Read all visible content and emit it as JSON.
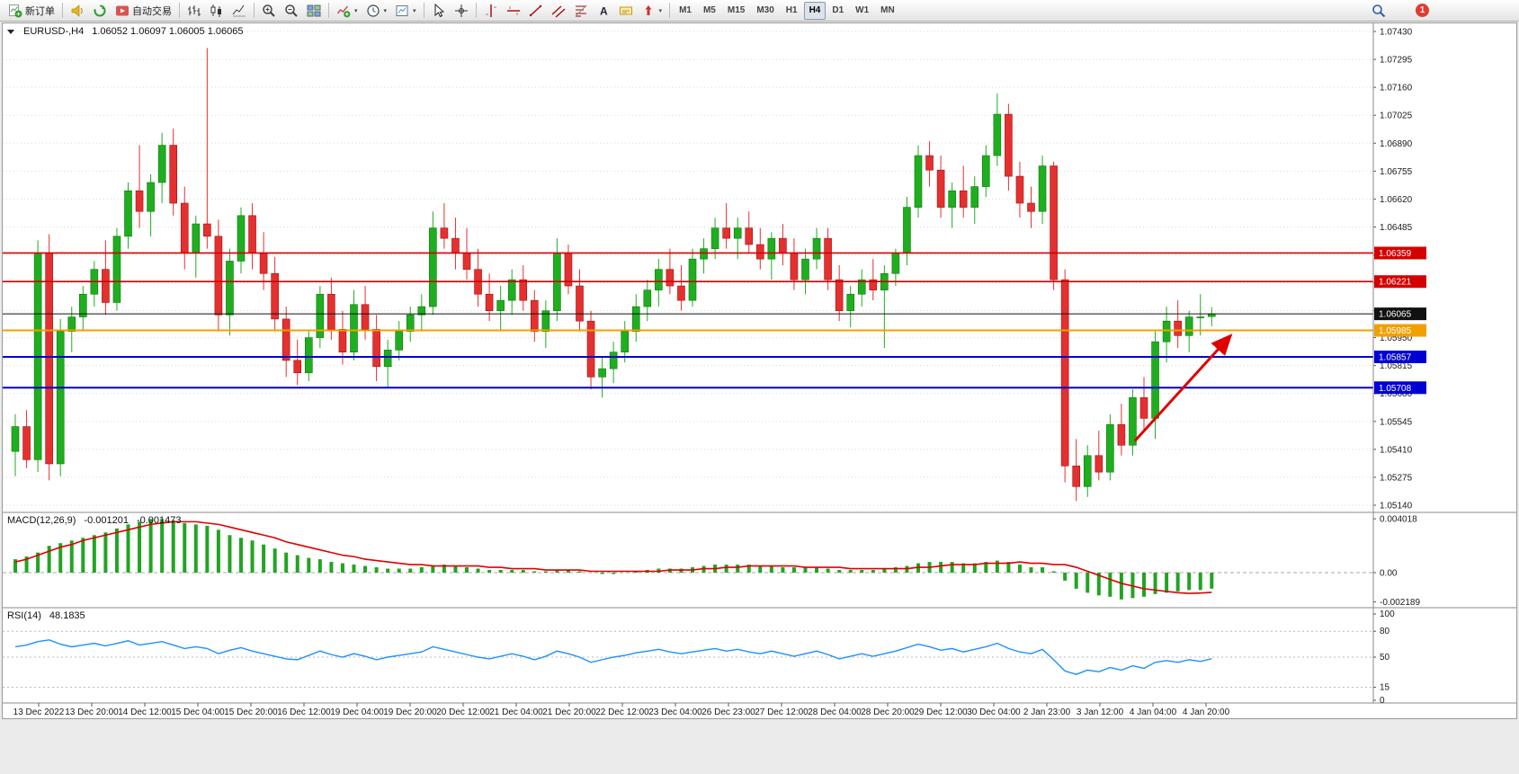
{
  "toolbar": {
    "items": [
      {
        "icon": "new-order",
        "label": "新订单",
        "name": "new-order-button"
      },
      {
        "sep": true
      },
      {
        "icon": "horn",
        "name": "alerts-button"
      },
      {
        "icon": "refresh-circle",
        "name": "quotes-button"
      },
      {
        "icon": "auto-trading",
        "label": "自动交易",
        "name": "auto-trading-button"
      },
      {
        "sep": true
      },
      {
        "icon": "bar-chart",
        "name": "bar-chart-button"
      },
      {
        "icon": "candles",
        "name": "candle-chart-button"
      },
      {
        "icon": "line-chart",
        "name": "line-chart-button"
      },
      {
        "sep": true
      },
      {
        "icon": "zoom-in",
        "name": "zoom-in-button"
      },
      {
        "icon": "zoom-out",
        "name": "zoom-out-button"
      },
      {
        "icon": "tile-windows",
        "name": "tile-windows-button"
      },
      {
        "sep": true
      },
      {
        "icon": "indicators",
        "caret": true,
        "name": "indicators-button"
      },
      {
        "icon": "periods",
        "caret": true,
        "name": "periods-button"
      },
      {
        "icon": "templates",
        "caret": true,
        "name": "templates-button"
      },
      {
        "sep": true
      },
      {
        "icon": "cursor",
        "name": "cursor-button"
      },
      {
        "icon": "crosshair",
        "name": "crosshair-button"
      },
      {
        "sep": true
      },
      {
        "icon": "vline",
        "name": "vertical-line-button"
      },
      {
        "icon": "hline",
        "name": "horizontal-line-button"
      },
      {
        "icon": "trendline",
        "name": "trendline-button"
      },
      {
        "icon": "channel",
        "name": "equidistant-channel-button"
      },
      {
        "icon": "fibonacci",
        "name": "fibonacci-button"
      },
      {
        "icon": "text",
        "name": "text-button"
      },
      {
        "icon": "label",
        "name": "text-label-button"
      },
      {
        "icon": "arrows-tool",
        "caret": true,
        "name": "arrows-button"
      },
      {
        "sep": true
      }
    ],
    "timeframes": [
      "M1",
      "M5",
      "M15",
      "M30",
      "H1",
      "H4",
      "D1",
      "W1",
      "MN"
    ],
    "active_timeframe": "H4",
    "right_items": [
      {
        "icon": "search",
        "name": "search-button"
      }
    ],
    "badge_count": "1"
  },
  "chart": {
    "header_symbol": "EURUSD-,H4",
    "header_ohlc": "1.06052 1.06097 1.06005 1.06065"
  },
  "macd": {
    "title": "MACD(12,26,9)",
    "value_main": "-0.001201",
    "value_signal": "-0.001473",
    "axis_labels": [
      "0.004018",
      "0.00",
      "-0.002189"
    ]
  },
  "rsi": {
    "title": "RSI(14)",
    "value": "48.1835",
    "axis_labels": [
      "100",
      "80",
      "50",
      "15",
      "0"
    ],
    "levels": [
      80,
      50,
      15
    ]
  },
  "chart_data": {
    "type": "candlestick",
    "symbol": "EURUSD-",
    "timeframe": "H4",
    "current_ohlc": {
      "open": 1.06052,
      "high": 1.06097,
      "low": 1.06005,
      "close": 1.06065
    },
    "y_axis": {
      "min": 1.0514,
      "max": 1.0743,
      "labels": [
        "1.07430",
        "1.07295",
        "1.07160",
        "1.07025",
        "1.06890",
        "1.06755",
        "1.06620",
        "1.06485",
        "1.06350",
        "1.06215",
        "1.06080",
        "1.05950",
        "1.05815",
        "1.05680",
        "1.05545",
        "1.05410",
        "1.05275",
        "1.05140"
      ]
    },
    "time_labels": [
      "13 Dec 2022",
      "13 Dec 20:00",
      "14 Dec 12:00",
      "15 Dec 04:00",
      "15 Dec 20:00",
      "16 Dec 12:00",
      "19 Dec 04:00",
      "19 Dec 20:00",
      "20 Dec 12:00",
      "21 Dec 04:00",
      "21 Dec 20:00",
      "22 Dec 12:00",
      "23 Dec 04:00",
      "26 Dec 23:00",
      "27 Dec 12:00",
      "28 Dec 04:00",
      "28 Dec 20:00",
      "29 Dec 12:00",
      "30 Dec 04:00",
      "2 Jan 23:00",
      "3 Jan 12:00",
      "4 Jan 04:00",
      "4 Jan 20:00"
    ],
    "candles": [
      [
        1.054,
        1.0558,
        1.0528,
        1.0552
      ],
      [
        1.0552,
        1.056,
        1.0532,
        1.0536
      ],
      [
        1.0536,
        1.0642,
        1.053,
        1.0636
      ],
      [
        1.0636,
        1.0645,
        1.0526,
        1.0534
      ],
      [
        1.0534,
        1.0604,
        1.0528,
        1.0598
      ],
      [
        1.0598,
        1.061,
        1.0588,
        1.0605
      ],
      [
        1.0605,
        1.062,
        1.0598,
        1.0616
      ],
      [
        1.0616,
        1.0632,
        1.061,
        1.0628
      ],
      [
        1.0628,
        1.0642,
        1.0606,
        1.0612
      ],
      [
        1.0612,
        1.0648,
        1.0608,
        1.0644
      ],
      [
        1.0644,
        1.067,
        1.0638,
        1.0666
      ],
      [
        1.0666,
        1.0688,
        1.0648,
        1.0656
      ],
      [
        1.0656,
        1.0674,
        1.0644,
        1.067
      ],
      [
        1.067,
        1.0694,
        1.066,
        1.0688
      ],
      [
        1.0688,
        1.0696,
        1.0654,
        1.066
      ],
      [
        1.066,
        1.0668,
        1.0628,
        1.0636
      ],
      [
        1.0636,
        1.0654,
        1.0624,
        1.065
      ],
      [
        1.065,
        1.0735,
        1.0638,
        1.0644
      ],
      [
        1.0644,
        1.0652,
        1.0598,
        1.0606
      ],
      [
        1.0606,
        1.0638,
        1.0596,
        1.0632
      ],
      [
        1.0632,
        1.0658,
        1.0626,
        1.0654
      ],
      [
        1.0654,
        1.066,
        1.0628,
        1.0636
      ],
      [
        1.0636,
        1.0646,
        1.0618,
        1.0626
      ],
      [
        1.0626,
        1.0634,
        1.0598,
        1.0604
      ],
      [
        1.0604,
        1.061,
        1.0576,
        1.0584
      ],
      [
        1.0584,
        1.0594,
        1.0572,
        1.0578
      ],
      [
        1.0578,
        1.0598,
        1.0574,
        1.0595
      ],
      [
        1.0595,
        1.062,
        1.059,
        1.0616
      ],
      [
        1.0616,
        1.0624,
        1.0594,
        1.0599
      ],
      [
        1.0599,
        1.0608,
        1.0582,
        1.0588
      ],
      [
        1.0588,
        1.0618,
        1.0584,
        1.0611
      ],
      [
        1.0611,
        1.062,
        1.0594,
        1.0599
      ],
      [
        1.0599,
        1.0606,
        1.0574,
        1.0581
      ],
      [
        1.0581,
        1.0594,
        1.0571,
        1.0589
      ],
      [
        1.0589,
        1.0603,
        1.0584,
        1.0598
      ],
      [
        1.0598,
        1.061,
        1.0593,
        1.0606
      ],
      [
        1.0606,
        1.0616,
        1.0598,
        1.061
      ],
      [
        1.061,
        1.0656,
        1.0606,
        1.0648
      ],
      [
        1.0648,
        1.066,
        1.0638,
        1.0643
      ],
      [
        1.0643,
        1.0653,
        1.0628,
        1.0636
      ],
      [
        1.0636,
        1.0648,
        1.0623,
        1.0628
      ],
      [
        1.0628,
        1.0638,
        1.061,
        1.0616
      ],
      [
        1.0616,
        1.0626,
        1.0603,
        1.0608
      ],
      [
        1.0608,
        1.062,
        1.0598,
        1.0613
      ],
      [
        1.0613,
        1.0628,
        1.0606,
        1.0623
      ],
      [
        1.0623,
        1.063,
        1.0608,
        1.0613
      ],
      [
        1.0613,
        1.0618,
        1.0593,
        1.0598
      ],
      [
        1.0598,
        1.0613,
        1.059,
        1.0608
      ],
      [
        1.0608,
        1.0643,
        1.0603,
        1.0636
      ],
      [
        1.0636,
        1.064,
        1.0616,
        1.062
      ],
      [
        1.062,
        1.0628,
        1.0598,
        1.0603
      ],
      [
        1.0603,
        1.0608,
        1.057,
        1.0576
      ],
      [
        1.0576,
        1.0586,
        1.0566,
        1.058
      ],
      [
        1.058,
        1.0593,
        1.0573,
        1.0588
      ],
      [
        1.0588,
        1.0603,
        1.0583,
        1.0598
      ],
      [
        1.0598,
        1.0616,
        1.0593,
        1.061
      ],
      [
        1.061,
        1.0623,
        1.0603,
        1.0618
      ],
      [
        1.0618,
        1.0633,
        1.061,
        1.0628
      ],
      [
        1.0628,
        1.0638,
        1.0616,
        1.062
      ],
      [
        1.062,
        1.063,
        1.0608,
        1.0613
      ],
      [
        1.0613,
        1.0638,
        1.061,
        1.0633
      ],
      [
        1.0633,
        1.0643,
        1.0626,
        1.0638
      ],
      [
        1.0638,
        1.0653,
        1.0633,
        1.0648
      ],
      [
        1.0648,
        1.066,
        1.0638,
        1.0643
      ],
      [
        1.0643,
        1.0653,
        1.0633,
        1.0648
      ],
      [
        1.0648,
        1.0656,
        1.0636,
        1.064
      ],
      [
        1.064,
        1.0648,
        1.0628,
        1.0633
      ],
      [
        1.0633,
        1.0646,
        1.0623,
        1.0643
      ],
      [
        1.0643,
        1.065,
        1.063,
        1.0636
      ],
      [
        1.0636,
        1.0643,
        1.0618,
        1.0623
      ],
      [
        1.0623,
        1.0638,
        1.0616,
        1.0633
      ],
      [
        1.0633,
        1.0648,
        1.0628,
        1.0643
      ],
      [
        1.0643,
        1.0648,
        1.0618,
        1.0623
      ],
      [
        1.0623,
        1.063,
        1.0603,
        1.0608
      ],
      [
        1.0608,
        1.062,
        1.06,
        1.0616
      ],
      [
        1.0616,
        1.0628,
        1.061,
        1.0623
      ],
      [
        1.0623,
        1.0633,
        1.0613,
        1.0618
      ],
      [
        1.0618,
        1.063,
        1.059,
        1.0626
      ],
      [
        1.0626,
        1.0638,
        1.062,
        1.0636
      ],
      [
        1.0636,
        1.0663,
        1.063,
        1.0658
      ],
      [
        1.0658,
        1.0688,
        1.0653,
        1.0683
      ],
      [
        1.0683,
        1.069,
        1.0668,
        1.0676
      ],
      [
        1.0676,
        1.0683,
        1.0653,
        1.0658
      ],
      [
        1.0658,
        1.067,
        1.0648,
        1.0666
      ],
      [
        1.0666,
        1.0678,
        1.0653,
        1.0658
      ],
      [
        1.0658,
        1.0673,
        1.065,
        1.0668
      ],
      [
        1.0668,
        1.0688,
        1.0663,
        1.0683
      ],
      [
        1.0683,
        1.0713,
        1.0678,
        1.0703
      ],
      [
        1.0703,
        1.0708,
        1.0666,
        1.0673
      ],
      [
        1.0673,
        1.068,
        1.0653,
        1.066
      ],
      [
        1.066,
        1.0668,
        1.0648,
        1.0656
      ],
      [
        1.0656,
        1.0683,
        1.065,
        1.0678
      ],
      [
        1.0678,
        1.068,
        1.0618,
        1.0623
      ],
      [
        1.0623,
        1.0628,
        1.0525,
        1.0533
      ],
      [
        1.0533,
        1.0546,
        1.0516,
        1.0523
      ],
      [
        1.0523,
        1.0543,
        1.0518,
        1.0538
      ],
      [
        1.0538,
        1.055,
        1.0526,
        1.053
      ],
      [
        1.053,
        1.0558,
        1.0526,
        1.0553
      ],
      [
        1.0553,
        1.0563,
        1.0538,
        1.0543
      ],
      [
        1.0543,
        1.057,
        1.0538,
        1.0566
      ],
      [
        1.0566,
        1.0576,
        1.055,
        1.0556
      ],
      [
        1.0556,
        1.0598,
        1.0546,
        1.0593
      ],
      [
        1.0593,
        1.061,
        1.0583,
        1.0603
      ],
      [
        1.0603,
        1.0613,
        1.059,
        1.0596
      ],
      [
        1.0596,
        1.0608,
        1.0588,
        1.0605
      ],
      [
        1.0605,
        1.0616,
        1.0596,
        1.0605
      ],
      [
        1.06052,
        1.06097,
        1.06005,
        1.06065
      ]
    ],
    "hlines": [
      {
        "price": 1.06359,
        "label": "1.06359",
        "color": "#d40000",
        "width": 1.6
      },
      {
        "price": 1.06221,
        "label": "1.06221",
        "color": "#d40000",
        "width": 1.6
      },
      {
        "price": 1.06065,
        "label": "1.06065",
        "color": "#111111",
        "width": 1
      },
      {
        "price": 1.05985,
        "label": "1.05985",
        "color": "#f0a000",
        "width": 2
      },
      {
        "price": 1.05857,
        "label": "1.05857",
        "color": "#0000d4",
        "width": 2
      },
      {
        "price": 1.05708,
        "label": "1.05708",
        "color": "#0000d4",
        "width": 2
      }
    ],
    "macd": {
      "params": "12,26,9",
      "axis_max": 0.004018,
      "axis_min": -0.002189,
      "last_main": -0.001201,
      "last_signal": -0.001473,
      "histogram": [
        0.001,
        0.0012,
        0.0015,
        0.002,
        0.0022,
        0.0024,
        0.0026,
        0.0028,
        0.003,
        0.0033,
        0.0036,
        0.0038,
        0.004,
        0.004,
        0.0039,
        0.0037,
        0.0036,
        0.0035,
        0.0032,
        0.0028,
        0.0026,
        0.0024,
        0.0021,
        0.0018,
        0.0015,
        0.0013,
        0.0011,
        0.001,
        0.0008,
        0.0007,
        0.0006,
        0.0005,
        0.0004,
        0.0003,
        0.0003,
        0.0003,
        0.0004,
        0.0005,
        0.0006,
        0.0005,
        0.0004,
        0.0003,
        0.0002,
        0.0002,
        0.0002,
        0.0002,
        0.0001,
        0.0001,
        0.0002,
        0.0002,
        0.0001,
        0.0,
        -0.0001,
        -0.0001,
        0.0,
        0.0001,
        0.0002,
        0.0003,
        0.0003,
        0.0003,
        0.0004,
        0.0005,
        0.0006,
        0.0006,
        0.0006,
        0.0006,
        0.0005,
        0.0005,
        0.0004,
        0.0004,
        0.0004,
        0.0004,
        0.0003,
        0.0002,
        0.0002,
        0.0002,
        0.0002,
        0.0003,
        0.0004,
        0.0005,
        0.0007,
        0.0008,
        0.0008,
        0.0008,
        0.0007,
        0.0007,
        0.0008,
        0.0009,
        0.0008,
        0.0006,
        0.0004,
        0.0004,
        0.0001,
        -0.0006,
        -0.0012,
        -0.0015,
        -0.0017,
        -0.0018,
        -0.002,
        -0.0019,
        -0.0018,
        -0.0016,
        -0.0015,
        -0.0014,
        -0.0013,
        -0.0013,
        -0.0012
      ],
      "signal": [
        0.0008,
        0.001,
        0.0013,
        0.0016,
        0.0019,
        0.0021,
        0.0024,
        0.0026,
        0.0028,
        0.003,
        0.0032,
        0.0034,
        0.0036,
        0.0037,
        0.0038,
        0.0038,
        0.0038,
        0.0037,
        0.0036,
        0.0034,
        0.0032,
        0.003,
        0.0028,
        0.0026,
        0.0023,
        0.0021,
        0.0019,
        0.0017,
        0.0015,
        0.0013,
        0.0012,
        0.001,
        0.0009,
        0.0008,
        0.0007,
        0.0006,
        0.0006,
        0.0005,
        0.0005,
        0.0005,
        0.0005,
        0.0005,
        0.0004,
        0.0004,
        0.0003,
        0.0003,
        0.0003,
        0.0002,
        0.0002,
        0.0002,
        0.0002,
        0.0001,
        0.0001,
        0.0001,
        0.0001,
        0.0001,
        0.0001,
        0.0001,
        0.0002,
        0.0002,
        0.0002,
        0.0003,
        0.0003,
        0.0004,
        0.0004,
        0.0005,
        0.0005,
        0.0005,
        0.0005,
        0.0005,
        0.0004,
        0.0004,
        0.0004,
        0.0004,
        0.0003,
        0.0003,
        0.0003,
        0.0003,
        0.0003,
        0.0003,
        0.0004,
        0.0004,
        0.0005,
        0.0006,
        0.0006,
        0.0006,
        0.0007,
        0.0007,
        0.0007,
        0.0008,
        0.0007,
        0.0007,
        0.0006,
        0.0006,
        0.0004,
        0.0001,
        -0.0002,
        -0.0005,
        -0.0008,
        -0.001,
        -0.0012,
        -0.0013,
        -0.0014,
        -0.0015,
        -0.00155,
        -0.00152,
        -0.001473
      ]
    },
    "rsi_values": [
      62,
      64,
      68,
      70,
      65,
      62,
      64,
      66,
      63,
      66,
      69,
      64,
      66,
      68,
      64,
      60,
      62,
      60,
      54,
      58,
      61,
      57,
      54,
      51,
      48,
      47,
      52,
      57,
      53,
      50,
      54,
      51,
      47,
      50,
      52,
      54,
      56,
      62,
      59,
      56,
      53,
      50,
      48,
      51,
      54,
      51,
      47,
      51,
      57,
      54,
      50,
      44,
      47,
      50,
      52,
      55,
      57,
      59,
      56,
      54,
      56,
      58,
      60,
      57,
      59,
      56,
      54,
      57,
      54,
      51,
      54,
      57,
      53,
      48,
      51,
      54,
      51,
      54,
      57,
      61,
      65,
      62,
      58,
      60,
      56,
      59,
      62,
      66,
      60,
      56,
      54,
      59,
      47,
      34,
      30,
      35,
      33,
      38,
      35,
      40,
      37,
      44,
      46,
      44,
      47,
      45,
      48.18
    ],
    "arrow": {
      "from": {
        "bar": 99.5,
        "price": 1.0545
      },
      "to": {
        "bar": 108,
        "price": 1.0596
      },
      "color": "#e00000"
    },
    "colors": {
      "up": "#1fae1f",
      "down": "#e53030",
      "macd_hist": "#22a422",
      "macd_signal": "#e00000",
      "rsi_line": "#1e90ff"
    }
  }
}
